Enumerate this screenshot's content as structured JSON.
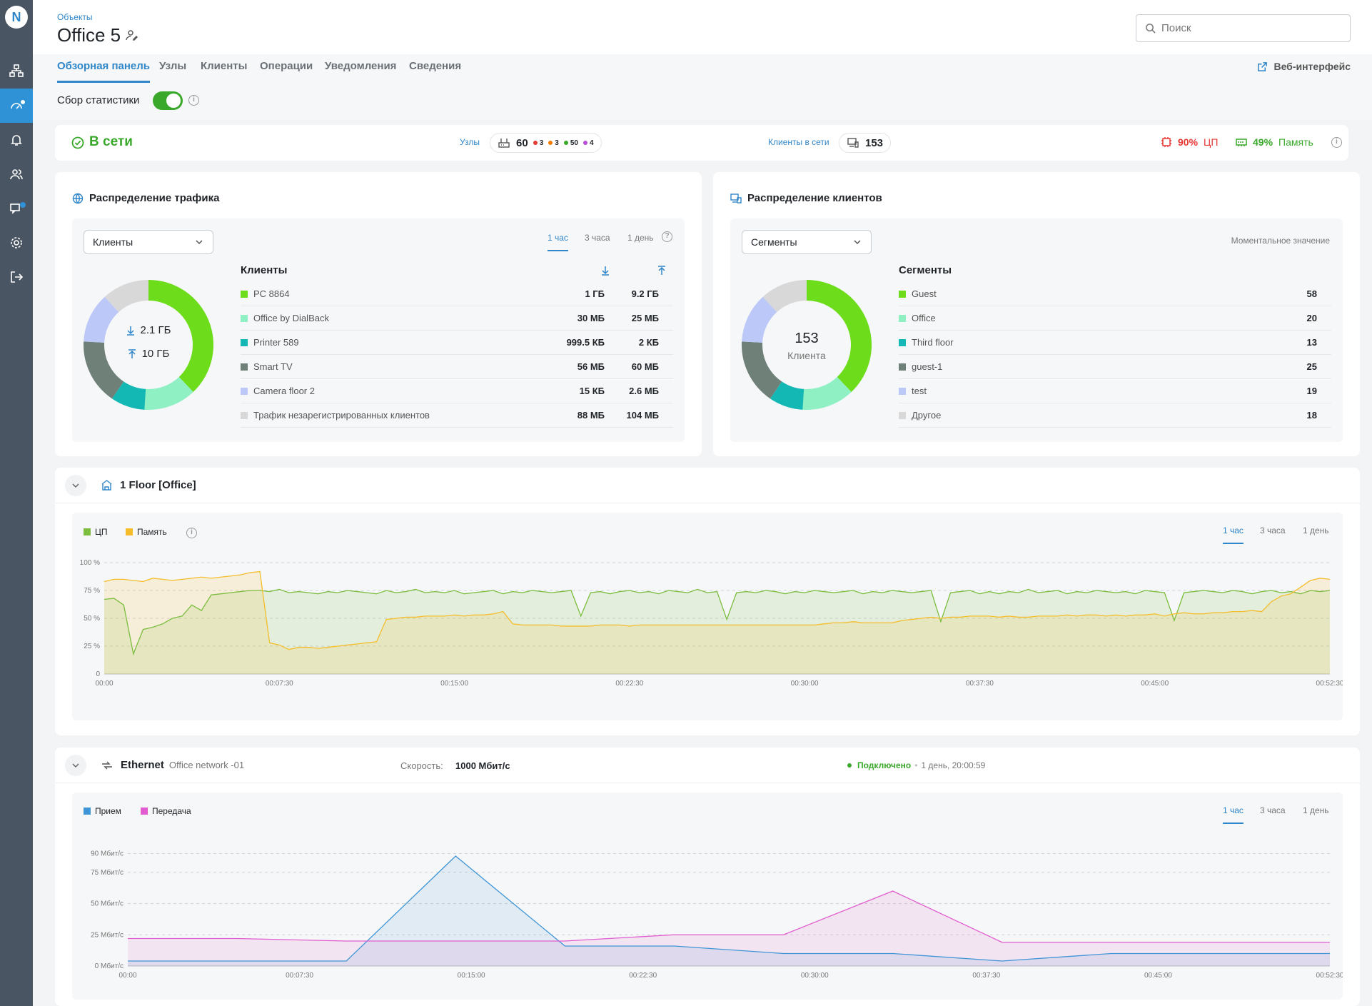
{
  "app": {
    "logo_letter": "N"
  },
  "header": {
    "breadcrumb": "Объекты",
    "title": "Office 5",
    "search_placeholder": "Поиск"
  },
  "tabs": [
    {
      "label": "Обзорная панель",
      "active": true
    },
    {
      "label": "Узлы"
    },
    {
      "label": "Клиенты"
    },
    {
      "label": "Операции"
    },
    {
      "label": "Уведомления"
    },
    {
      "label": "Сведения"
    }
  ],
  "web_interface_label": "Веб-интерфейс",
  "stats_toggle": {
    "label": "Сбор статистики",
    "on": true
  },
  "status": {
    "online_label": "В сети",
    "nodes_label": "Узлы",
    "nodes_total": "60",
    "nodes_breakdown": [
      {
        "value": "3",
        "color": "#e53935"
      },
      {
        "value": "3",
        "color": "#f57c00"
      },
      {
        "value": "50",
        "color": "#3aa82b"
      },
      {
        "value": "4",
        "color": "#b84fd6"
      }
    ],
    "clients_label": "Клиенты в сети",
    "clients_total": "153",
    "cpu_value": "90%",
    "cpu_label": "ЦП",
    "mem_value": "49%",
    "mem_label": "Память"
  },
  "traffic": {
    "title": "Распределение трафика",
    "select_value": "Клиенты",
    "time_tabs": [
      "1 час",
      "3 часа",
      "1 день"
    ],
    "list_title": "Клиенты",
    "center_down": "2.1 ГБ",
    "center_up": "10 ГБ",
    "rows": [
      {
        "name": "PC 8864",
        "down": "1 ГБ",
        "up": "9.2 ГБ",
        "color": "#6ddc1a"
      },
      {
        "name": "Office by DialBack",
        "down": "30 МБ",
        "up": "25 МБ",
        "color": "#8ff0c4"
      },
      {
        "name": "Printer 589",
        "down": "999.5 КБ",
        "up": "2 КБ",
        "color": "#13b8b4"
      },
      {
        "name": "Smart TV",
        "down": "56 МБ",
        "up": "60 МБ",
        "color": "#6e8078"
      },
      {
        "name": "Camera floor 2",
        "down": "15 КБ",
        "up": "2.6 МБ",
        "color": "#bcc8f7"
      },
      {
        "name": "Трафик незарегистрированных клиентов",
        "down": "88 МБ",
        "up": "104 МБ",
        "color": "#d8d8d8"
      }
    ]
  },
  "clients_dist": {
    "title": "Распределение клиентов",
    "select_value": "Сегменты",
    "mode_label": "Моментальное значение",
    "list_title": "Сегменты",
    "center_value": "153",
    "center_label": "Клиента",
    "rows": [
      {
        "name": "Guest",
        "value": "58",
        "color": "#6ddc1a"
      },
      {
        "name": "Office",
        "value": "20",
        "color": "#8ff0c4"
      },
      {
        "name": "Third floor",
        "value": "13",
        "color": "#13b8b4"
      },
      {
        "name": "guest-1",
        "value": "25",
        "color": "#6e8078"
      },
      {
        "name": "test",
        "value": "19",
        "color": "#bcc8f7"
      },
      {
        "name": "Другое",
        "value": "18",
        "color": "#d8d8d8"
      }
    ]
  },
  "floor": {
    "title": "1 Floor [Office]",
    "legend": [
      {
        "name": "ЦП",
        "color": "#7cbd3f"
      },
      {
        "name": "Память",
        "color": "#f5bd2b"
      }
    ],
    "time_tabs": [
      "1 час",
      "3 часа",
      "1 день"
    ]
  },
  "ethernet": {
    "title": "Ethernet",
    "subtitle": "Office network -01",
    "speed_label": "Скорость:",
    "speed_value": "1000 Мбит/с",
    "status": "Подключено",
    "uptime": "1 день, 20:00:59",
    "legend": [
      {
        "name": "Прием",
        "color": "#3f95d6"
      },
      {
        "name": "Передача",
        "color": "#e05ccf"
      }
    ],
    "time_tabs": [
      "1 час",
      "3 часа",
      "1 день"
    ]
  },
  "chart_data": [
    {
      "type": "area",
      "title": "",
      "x_ticks": [
        "00:00",
        "00:07:30",
        "00:15:00",
        "00:22:30",
        "00:30:00",
        "00:37:30",
        "00:45:00",
        "00:52:30"
      ],
      "y_ticks": [
        "0",
        "25 %",
        "50 %",
        "75 %",
        "100 %"
      ],
      "ylim": [
        0,
        100
      ],
      "grid": true,
      "series": [
        {
          "name": "ЦП",
          "color": "#7cbd3f",
          "values": [
            67,
            68,
            62,
            18,
            40,
            42,
            45,
            50,
            52,
            62,
            57,
            71,
            72,
            73,
            74,
            75,
            75,
            74,
            76,
            73,
            74,
            73,
            72,
            74,
            73,
            75,
            74,
            73,
            72,
            75,
            73,
            74,
            76,
            73,
            74,
            73,
            75,
            72,
            73,
            74,
            75,
            72,
            74,
            73,
            75,
            74,
            73,
            74,
            75,
            52,
            73,
            74,
            72,
            74,
            75,
            73,
            74,
            72,
            75,
            74,
            73,
            76,
            73,
            74,
            49,
            73,
            74,
            73,
            75,
            74,
            72,
            74,
            73,
            75,
            74,
            73,
            74,
            75,
            72,
            74,
            73,
            75,
            74,
            73,
            74,
            75,
            47,
            73,
            74,
            75,
            72,
            74,
            72,
            74,
            73,
            76,
            73,
            74,
            75,
            72,
            74,
            73,
            75,
            74,
            73,
            74,
            72,
            75,
            74,
            73,
            48,
            73,
            74,
            75,
            74,
            73,
            75,
            74,
            72,
            74,
            75,
            73,
            74,
            72,
            75,
            74,
            75
          ]
        },
        {
          "name": "Память",
          "color": "#f5bd2b",
          "values": [
            83,
            85,
            85,
            84,
            83,
            86,
            85,
            84,
            85,
            86,
            87,
            86,
            87,
            88,
            89,
            91,
            92,
            28,
            26,
            22,
            24,
            24,
            23,
            24,
            25,
            26,
            27,
            28,
            29,
            49,
            50,
            51,
            51,
            52,
            52,
            52,
            53,
            52,
            53,
            53,
            54,
            56,
            45,
            44,
            44,
            44,
            44,
            43,
            43,
            43,
            43,
            44,
            44,
            44,
            43,
            44,
            44,
            44,
            44,
            44,
            44,
            44,
            44,
            44,
            44,
            44,
            44,
            44,
            44,
            44,
            44,
            44,
            44,
            44,
            45,
            46,
            46,
            47,
            46,
            46,
            46,
            46,
            48,
            49,
            50,
            51,
            50,
            51,
            51,
            52,
            52,
            52,
            51,
            52,
            51,
            51,
            52,
            52,
            52,
            53,
            52,
            53,
            53,
            52,
            53,
            52,
            53,
            53,
            54,
            52,
            54,
            55,
            54,
            54,
            55,
            55,
            56,
            56,
            57,
            56,
            65,
            70,
            72,
            78,
            84,
            86,
            85
          ]
        }
      ]
    },
    {
      "type": "area",
      "title": "",
      "x_ticks": [
        "00:00",
        "00:07:30",
        "00:15:00",
        "00:22:30",
        "00:30:00",
        "00:37:30",
        "00:45:00",
        "00:52:30"
      ],
      "y_ticks": [
        "0 Мбит/с",
        "25 Мбит/с",
        "50 Мбит/с",
        "75 Мбит/с",
        "90 Мбит/с"
      ],
      "ylim": [
        0,
        100
      ],
      "grid": true,
      "series": [
        {
          "name": "Прием",
          "color": "#3f95d6",
          "values": [
            4,
            4,
            4,
            88,
            16,
            16,
            10,
            10,
            4,
            10,
            10,
            10
          ]
        },
        {
          "name": "Передача",
          "color": "#e05ccf",
          "values": [
            22,
            22,
            20,
            20,
            20,
            25,
            25,
            60,
            19,
            19,
            19,
            19
          ]
        }
      ]
    }
  ]
}
